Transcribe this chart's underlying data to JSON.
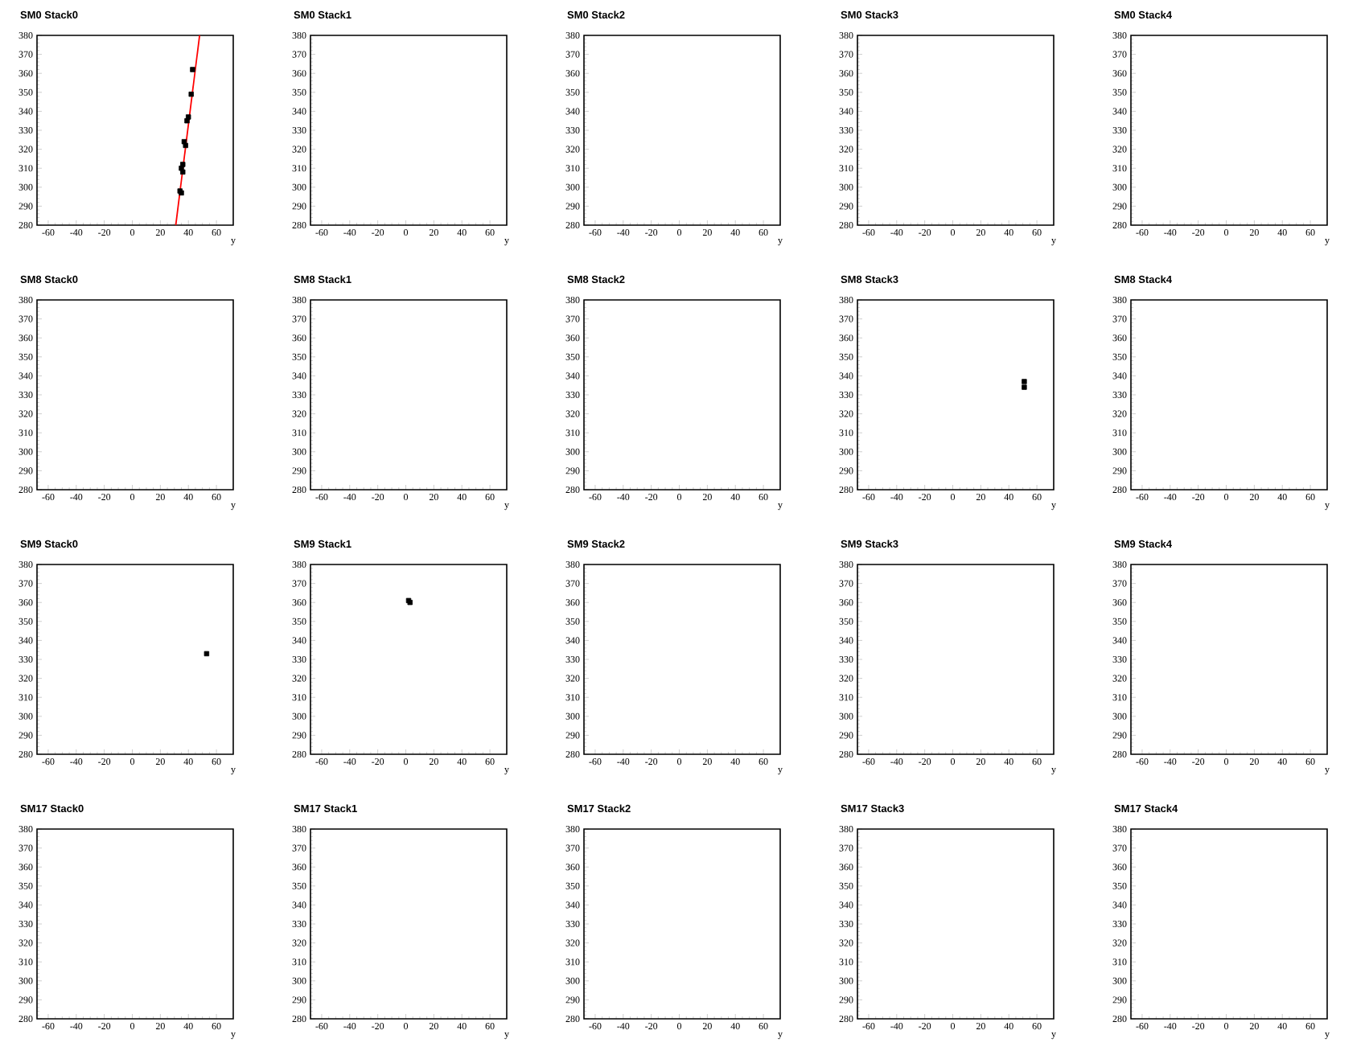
{
  "chart_data": [
    {
      "type": "scatter",
      "title": "SM0 Stack0",
      "xlabel": "y",
      "xlim": [
        -68,
        72
      ],
      "ylim": [
        280,
        380
      ],
      "xticks": [
        -60,
        -40,
        -20,
        0,
        20,
        40,
        60
      ],
      "yticks": [
        280,
        290,
        300,
        310,
        320,
        330,
        340,
        350,
        360,
        370,
        380
      ],
      "marker": "square",
      "series": [
        {
          "color": "#000000",
          "x": [
            43,
            42,
            40,
            39,
            37,
            38,
            36,
            35,
            36,
            34,
            35
          ],
          "values": [
            362,
            349,
            337,
            335,
            324,
            322,
            312,
            310,
            308,
            298,
            297
          ]
        },
        {
          "type": "line",
          "marker": "none",
          "color": "#ff0000",
          "x": [
            31,
            48
          ],
          "values": [
            280,
            380
          ]
        }
      ]
    },
    {
      "type": "scatter",
      "title": "SM0 Stack1",
      "xlabel": "y",
      "xlim": [
        -68,
        72
      ],
      "ylim": [
        280,
        380
      ],
      "xticks": [
        -60,
        -40,
        -20,
        0,
        20,
        40,
        60
      ],
      "yticks": [
        280,
        290,
        300,
        310,
        320,
        330,
        340,
        350,
        360,
        370,
        380
      ]
    },
    {
      "type": "scatter",
      "title": "SM0 Stack2",
      "xlabel": "y",
      "xlim": [
        -68,
        72
      ],
      "ylim": [
        280,
        380
      ],
      "xticks": [
        -60,
        -40,
        -20,
        0,
        20,
        40,
        60
      ],
      "yticks": [
        280,
        290,
        300,
        310,
        320,
        330,
        340,
        350,
        360,
        370,
        380
      ]
    },
    {
      "type": "scatter",
      "title": "SM0 Stack3",
      "xlabel": "y",
      "xlim": [
        -68,
        72
      ],
      "ylim": [
        280,
        380
      ],
      "xticks": [
        -60,
        -40,
        -20,
        0,
        20,
        40,
        60
      ],
      "yticks": [
        280,
        290,
        300,
        310,
        320,
        330,
        340,
        350,
        360,
        370,
        380
      ]
    },
    {
      "type": "scatter",
      "title": "SM0 Stack4",
      "xlabel": "y",
      "xlim": [
        -68,
        72
      ],
      "ylim": [
        280,
        380
      ],
      "xticks": [
        -60,
        -40,
        -20,
        0,
        20,
        40,
        60
      ],
      "yticks": [
        280,
        290,
        300,
        310,
        320,
        330,
        340,
        350,
        360,
        370,
        380
      ]
    },
    {
      "type": "scatter",
      "title": "SM8 Stack0",
      "xlabel": "y",
      "xlim": [
        -68,
        72
      ],
      "ylim": [
        280,
        380
      ],
      "xticks": [
        -60,
        -40,
        -20,
        0,
        20,
        40,
        60
      ],
      "yticks": [
        280,
        290,
        300,
        310,
        320,
        330,
        340,
        350,
        360,
        370,
        380
      ]
    },
    {
      "type": "scatter",
      "title": "SM8 Stack1",
      "xlabel": "y",
      "xlim": [
        -68,
        72
      ],
      "ylim": [
        280,
        380
      ],
      "xticks": [
        -60,
        -40,
        -20,
        0,
        20,
        40,
        60
      ],
      "yticks": [
        280,
        290,
        300,
        310,
        320,
        330,
        340,
        350,
        360,
        370,
        380
      ]
    },
    {
      "type": "scatter",
      "title": "SM8 Stack2",
      "xlabel": "y",
      "xlim": [
        -68,
        72
      ],
      "ylim": [
        280,
        380
      ],
      "xticks": [
        -60,
        -40,
        -20,
        0,
        20,
        40,
        60
      ],
      "yticks": [
        280,
        290,
        300,
        310,
        320,
        330,
        340,
        350,
        360,
        370,
        380
      ]
    },
    {
      "type": "scatter",
      "title": "SM8 Stack3",
      "xlabel": "y",
      "xlim": [
        -68,
        72
      ],
      "ylim": [
        280,
        380
      ],
      "xticks": [
        -60,
        -40,
        -20,
        0,
        20,
        40,
        60
      ],
      "yticks": [
        280,
        290,
        300,
        310,
        320,
        330,
        340,
        350,
        360,
        370,
        380
      ],
      "marker": "square",
      "series": [
        {
          "color": "#000000",
          "x": [
            51,
            51
          ],
          "values": [
            337,
            334
          ]
        }
      ]
    },
    {
      "type": "scatter",
      "title": "SM8 Stack4",
      "xlabel": "y",
      "xlim": [
        -68,
        72
      ],
      "ylim": [
        280,
        380
      ],
      "xticks": [
        -60,
        -40,
        -20,
        0,
        20,
        40,
        60
      ],
      "yticks": [
        280,
        290,
        300,
        310,
        320,
        330,
        340,
        350,
        360,
        370,
        380
      ]
    },
    {
      "type": "scatter",
      "title": "SM9 Stack0",
      "xlabel": "y",
      "xlim": [
        -68,
        72
      ],
      "ylim": [
        280,
        380
      ],
      "xticks": [
        -60,
        -40,
        -20,
        0,
        20,
        40,
        60
      ],
      "yticks": [
        280,
        290,
        300,
        310,
        320,
        330,
        340,
        350,
        360,
        370,
        380
      ],
      "marker": "square",
      "series": [
        {
          "color": "#000000",
          "x": [
            53
          ],
          "values": [
            333
          ]
        }
      ]
    },
    {
      "type": "scatter",
      "title": "SM9 Stack1",
      "xlabel": "y",
      "xlim": [
        -68,
        72
      ],
      "ylim": [
        280,
        380
      ],
      "xticks": [
        -60,
        -40,
        -20,
        0,
        20,
        40,
        60
      ],
      "yticks": [
        280,
        290,
        300,
        310,
        320,
        330,
        340,
        350,
        360,
        370,
        380
      ],
      "marker": "square",
      "series": [
        {
          "color": "#000000",
          "x": [
            2,
            3
          ],
          "values": [
            361,
            360
          ]
        }
      ]
    },
    {
      "type": "scatter",
      "title": "SM9 Stack2",
      "xlabel": "y",
      "xlim": [
        -68,
        72
      ],
      "ylim": [
        280,
        380
      ],
      "xticks": [
        -60,
        -40,
        -20,
        0,
        20,
        40,
        60
      ],
      "yticks": [
        280,
        290,
        300,
        310,
        320,
        330,
        340,
        350,
        360,
        370,
        380
      ]
    },
    {
      "type": "scatter",
      "title": "SM9 Stack3",
      "xlabel": "y",
      "xlim": [
        -68,
        72
      ],
      "ylim": [
        280,
        380
      ],
      "xticks": [
        -60,
        -40,
        -20,
        0,
        20,
        40,
        60
      ],
      "yticks": [
        280,
        290,
        300,
        310,
        320,
        330,
        340,
        350,
        360,
        370,
        380
      ]
    },
    {
      "type": "scatter",
      "title": "SM9 Stack4",
      "xlabel": "y",
      "xlim": [
        -68,
        72
      ],
      "ylim": [
        280,
        380
      ],
      "xticks": [
        -60,
        -40,
        -20,
        0,
        20,
        40,
        60
      ],
      "yticks": [
        280,
        290,
        300,
        310,
        320,
        330,
        340,
        350,
        360,
        370,
        380
      ]
    },
    {
      "type": "scatter",
      "title": "SM17 Stack0",
      "xlabel": "y",
      "xlim": [
        -68,
        72
      ],
      "ylim": [
        280,
        380
      ],
      "xticks": [
        -60,
        -40,
        -20,
        0,
        20,
        40,
        60
      ],
      "yticks": [
        280,
        290,
        300,
        310,
        320,
        330,
        340,
        350,
        360,
        370,
        380
      ]
    },
    {
      "type": "scatter",
      "title": "SM17 Stack1",
      "xlabel": "y",
      "xlim": [
        -68,
        72
      ],
      "ylim": [
        280,
        380
      ],
      "xticks": [
        -60,
        -40,
        -20,
        0,
        20,
        40,
        60
      ],
      "yticks": [
        280,
        290,
        300,
        310,
        320,
        330,
        340,
        350,
        360,
        370,
        380
      ]
    },
    {
      "type": "scatter",
      "title": "SM17 Stack2",
      "xlabel": "y",
      "xlim": [
        -68,
        72
      ],
      "ylim": [
        280,
        380
      ],
      "xticks": [
        -60,
        -40,
        -20,
        0,
        20,
        40,
        60
      ],
      "yticks": [
        280,
        290,
        300,
        310,
        320,
        330,
        340,
        350,
        360,
        370,
        380
      ]
    },
    {
      "type": "scatter",
      "title": "SM17 Stack3",
      "xlabel": "y",
      "xlim": [
        -68,
        72
      ],
      "ylim": [
        280,
        380
      ],
      "xticks": [
        -60,
        -40,
        -20,
        0,
        20,
        40,
        60
      ],
      "yticks": [
        280,
        290,
        300,
        310,
        320,
        330,
        340,
        350,
        360,
        370,
        380
      ]
    },
    {
      "type": "scatter",
      "title": "SM17 Stack4",
      "xlabel": "y",
      "xlim": [
        -68,
        72
      ],
      "ylim": [
        280,
        380
      ],
      "xticks": [
        -60,
        -40,
        -20,
        0,
        20,
        40,
        60
      ],
      "yticks": [
        280,
        290,
        300,
        310,
        320,
        330,
        340,
        350,
        360,
        370,
        380
      ]
    }
  ]
}
